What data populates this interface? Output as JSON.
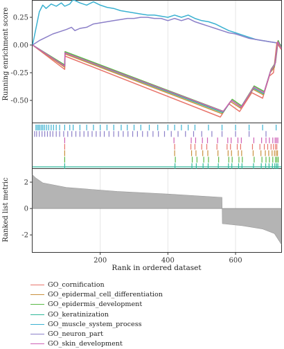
{
  "chart_data": {
    "type": "line",
    "title": "",
    "xlabel": "Rank in ordered dataset",
    "xlim": [
      0,
      735
    ],
    "xticks": [
      200,
      400,
      600
    ],
    "panels": {
      "running": {
        "ylabel": "Running enrichment score",
        "ylim": [
          -0.7,
          0.4
        ],
        "yticks": [
          "0.25",
          "0.00",
          "-0.25",
          "-0.50"
        ],
        "ytick_values": [
          0.25,
          0.0,
          -0.25,
          -0.5
        ]
      },
      "metric": {
        "ylabel": "Ranked list metric",
        "ylim": [
          -3.3,
          3.0
        ],
        "yticks": [
          "2",
          "0",
          "-2"
        ],
        "ytick_values": [
          2,
          0,
          -2
        ],
        "points": [
          [
            0,
            2.55
          ],
          [
            10,
            2.3
          ],
          [
            30,
            1.95
          ],
          [
            100,
            1.6
          ],
          [
            250,
            1.3
          ],
          [
            400,
            1.1
          ],
          [
            560,
            0.85
          ],
          [
            561,
            -1.15
          ],
          [
            620,
            -1.3
          ],
          [
            680,
            -1.55
          ],
          [
            715,
            -1.9
          ],
          [
            735,
            -2.7
          ]
        ]
      }
    },
    "series": [
      {
        "name": "GO_cornification",
        "color": "#e8746b",
        "es": [
          [
            0,
            0.0
          ],
          [
            95,
            -0.22
          ],
          [
            96,
            -0.1
          ],
          [
            555,
            -0.65
          ],
          [
            580,
            -0.53
          ],
          [
            612,
            -0.6
          ],
          [
            648,
            -0.43
          ],
          [
            680,
            -0.48
          ],
          [
            700,
            -0.28
          ],
          [
            712,
            -0.25
          ],
          [
            722,
            0.02
          ],
          [
            735,
            -0.04
          ]
        ],
        "hits": [
          95,
          420,
          468,
          480,
          500,
          515,
          545,
          575,
          585,
          605,
          615,
          650,
          672,
          685,
          695,
          705,
          712,
          718,
          722
        ]
      },
      {
        "name": "GO_epidermal_cell_differentiation",
        "color": "#c98f3c",
        "es": [
          [
            0,
            0.0
          ],
          [
            95,
            -0.2
          ],
          [
            96,
            -0.08
          ],
          [
            560,
            -0.62
          ],
          [
            585,
            -0.51
          ],
          [
            615,
            -0.57
          ],
          [
            652,
            -0.4
          ],
          [
            682,
            -0.45
          ],
          [
            702,
            -0.25
          ],
          [
            715,
            -0.2
          ],
          [
            724,
            0.03
          ],
          [
            735,
            -0.03
          ]
        ],
        "hits": [
          95,
          420,
          470,
          483,
          503,
          518,
          548,
          578,
          588,
          608,
          618,
          652,
          675,
          688,
          698,
          708,
          715,
          720,
          724
        ]
      },
      {
        "name": "GO_epidermis_development",
        "color": "#58b845",
        "es": [
          [
            0,
            0.0
          ],
          [
            95,
            -0.18
          ],
          [
            96,
            -0.06
          ],
          [
            565,
            -0.6
          ],
          [
            590,
            -0.49
          ],
          [
            618,
            -0.55
          ],
          [
            655,
            -0.37
          ],
          [
            685,
            -0.42
          ],
          [
            705,
            -0.22
          ],
          [
            718,
            -0.16
          ],
          [
            726,
            0.04
          ],
          [
            735,
            -0.02
          ]
        ],
        "hits": [
          95,
          422,
          472,
          486,
          506,
          520,
          550,
          580,
          590,
          610,
          620,
          655,
          678,
          690,
          700,
          710,
          718,
          722,
          726
        ]
      },
      {
        "name": "GO_keratinization",
        "color": "#2fb89a",
        "es": [
          [
            0,
            0.0
          ],
          [
            95,
            -0.19
          ],
          [
            96,
            -0.07
          ],
          [
            562,
            -0.61
          ],
          [
            588,
            -0.5
          ],
          [
            616,
            -0.56
          ],
          [
            653,
            -0.39
          ],
          [
            683,
            -0.44
          ],
          [
            703,
            -0.24
          ],
          [
            716,
            -0.18
          ],
          [
            725,
            0.03
          ],
          [
            735,
            -0.03
          ]
        ],
        "hits": [
          95,
          421,
          471,
          484,
          504,
          519,
          549,
          579,
          589,
          609,
          619,
          653,
          676,
          689,
          699,
          709,
          716,
          721,
          725
        ]
      },
      {
        "name": "GO_muscle_system_process",
        "color": "#3ab1d1",
        "es": [
          [
            0,
            0.0
          ],
          [
            10,
            0.15
          ],
          [
            20,
            0.3
          ],
          [
            30,
            0.36
          ],
          [
            40,
            0.33
          ],
          [
            55,
            0.37
          ],
          [
            70,
            0.35
          ],
          [
            85,
            0.38
          ],
          [
            95,
            0.35
          ],
          [
            110,
            0.37
          ],
          [
            120,
            0.41
          ],
          [
            140,
            0.38
          ],
          [
            160,
            0.36
          ],
          [
            180,
            0.39
          ],
          [
            200,
            0.36
          ],
          [
            220,
            0.34
          ],
          [
            240,
            0.33
          ],
          [
            260,
            0.31
          ],
          [
            280,
            0.3
          ],
          [
            300,
            0.29
          ],
          [
            320,
            0.28
          ],
          [
            340,
            0.27
          ],
          [
            360,
            0.27
          ],
          [
            380,
            0.26
          ],
          [
            400,
            0.25
          ],
          [
            420,
            0.27
          ],
          [
            440,
            0.25
          ],
          [
            460,
            0.27
          ],
          [
            480,
            0.24
          ],
          [
            500,
            0.22
          ],
          [
            520,
            0.21
          ],
          [
            540,
            0.19
          ],
          [
            560,
            0.16
          ],
          [
            580,
            0.13
          ],
          [
            600,
            0.11
          ],
          [
            620,
            0.09
          ],
          [
            640,
            0.07
          ],
          [
            660,
            0.05
          ],
          [
            680,
            0.04
          ],
          [
            700,
            0.03
          ],
          [
            720,
            0.02
          ],
          [
            735,
            0.0
          ]
        ],
        "hits": [
          10,
          14,
          18,
          22,
          27,
          31,
          36,
          42,
          48,
          55,
          62,
          70,
          80,
          95,
          110,
          120,
          140,
          160,
          180,
          200,
          220,
          240,
          262,
          280,
          300,
          320,
          345,
          370,
          400,
          420,
          440,
          460,
          480,
          520,
          560,
          600,
          640,
          680,
          720
        ]
      },
      {
        "name": "GO_neuron_part",
        "color": "#8b7fc8",
        "es": [
          [
            0,
            0.0
          ],
          [
            20,
            0.04
          ],
          [
            40,
            0.07
          ],
          [
            60,
            0.1
          ],
          [
            80,
            0.12
          ],
          [
            100,
            0.14
          ],
          [
            115,
            0.16
          ],
          [
            125,
            0.13
          ],
          [
            140,
            0.15
          ],
          [
            160,
            0.16
          ],
          [
            180,
            0.19
          ],
          [
            200,
            0.2
          ],
          [
            220,
            0.21
          ],
          [
            240,
            0.22
          ],
          [
            260,
            0.23
          ],
          [
            280,
            0.24
          ],
          [
            300,
            0.24
          ],
          [
            320,
            0.25
          ],
          [
            340,
            0.25
          ],
          [
            360,
            0.24
          ],
          [
            380,
            0.24
          ],
          [
            400,
            0.22
          ],
          [
            420,
            0.24
          ],
          [
            440,
            0.22
          ],
          [
            460,
            0.24
          ],
          [
            480,
            0.21
          ],
          [
            500,
            0.19
          ],
          [
            520,
            0.17
          ],
          [
            540,
            0.15
          ],
          [
            560,
            0.13
          ],
          [
            580,
            0.11
          ],
          [
            600,
            0.1
          ],
          [
            620,
            0.08
          ],
          [
            640,
            0.06
          ],
          [
            660,
            0.05
          ],
          [
            680,
            0.04
          ],
          [
            700,
            0.03
          ],
          [
            720,
            0.02
          ],
          [
            735,
            0.0
          ]
        ],
        "hits": [
          6,
          12,
          20,
          28,
          36,
          44,
          52,
          60,
          70,
          80,
          92,
          104,
          116,
          128,
          140,
          152,
          164,
          176,
          188,
          200,
          212,
          226,
          240,
          254,
          268,
          282,
          296,
          310,
          325,
          340,
          356,
          372,
          390,
          410,
          430,
          452,
          476,
          500,
          530,
          560,
          600,
          640,
          690
        ]
      },
      {
        "name": "GO_skin_development",
        "color": "#cd5fb5",
        "es": [
          [
            0,
            0.0
          ],
          [
            95,
            -0.19
          ],
          [
            96,
            -0.07
          ],
          [
            563,
            -0.6
          ],
          [
            588,
            -0.5
          ],
          [
            617,
            -0.56
          ],
          [
            654,
            -0.38
          ],
          [
            684,
            -0.43
          ],
          [
            704,
            -0.23
          ],
          [
            717,
            -0.17
          ],
          [
            725,
            0.03
          ],
          [
            735,
            -0.03
          ]
        ],
        "hits": [
          95,
          418,
          469,
          482,
          502,
          517,
          547,
          577,
          587,
          607,
          617,
          654,
          677,
          690,
          700,
          710,
          717,
          721,
          725
        ]
      }
    ]
  }
}
